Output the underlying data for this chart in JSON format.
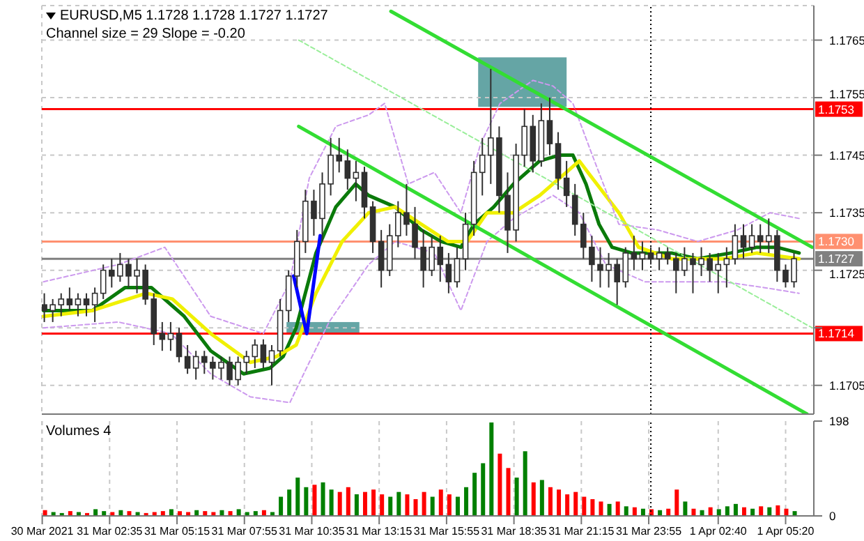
{
  "chart_data": [
    {
      "type": "candlestick",
      "title": "EURUSD,M5  1.1728 1.1728 1.1727 1.1727",
      "subtitle": "Channel size = 29 Slope = -0.20",
      "color": "#303030",
      "x": [
        "2021-03-31T00:00",
        "2021-03-31T00:20",
        "2021-03-31T00:40",
        "2021-03-31T01:00",
        "2021-03-31T01:20",
        "2021-03-31T01:40",
        "2021-03-31T02:00",
        "2021-03-31T02:20",
        "2021-03-31T02:40",
        "2021-03-31T03:00",
        "2021-03-31T03:20",
        "2021-03-31T03:40",
        "2021-03-31T04:00",
        "2021-03-31T04:20",
        "2021-03-31T04:40",
        "2021-03-31T05:00",
        "2021-03-31T05:20",
        "2021-03-31T05:40",
        "2021-03-31T06:00",
        "2021-03-31T06:20",
        "2021-03-31T06:40",
        "2021-03-31T07:00",
        "2021-03-31T07:20",
        "2021-03-31T07:40",
        "2021-03-31T08:00",
        "2021-03-31T08:20",
        "2021-03-31T08:40",
        "2021-03-31T09:00",
        "2021-03-31T09:20",
        "2021-03-31T09:40",
        "2021-03-31T10:00",
        "2021-03-31T10:20",
        "2021-03-31T10:40",
        "2021-03-31T11:00",
        "2021-03-31T11:20",
        "2021-03-31T11:40",
        "2021-03-31T12:00",
        "2021-03-31T12:20",
        "2021-03-31T12:40",
        "2021-03-31T13:00",
        "2021-03-31T13:20",
        "2021-03-31T13:40",
        "2021-03-31T14:00",
        "2021-03-31T14:20",
        "2021-03-31T14:40",
        "2021-03-31T15:00",
        "2021-03-31T15:20",
        "2021-03-31T15:40",
        "2021-03-31T16:00",
        "2021-03-31T16:20",
        "2021-03-31T16:40",
        "2021-03-31T17:00",
        "2021-03-31T17:20",
        "2021-03-31T17:40",
        "2021-03-31T18:00",
        "2021-03-31T18:20",
        "2021-03-31T18:40",
        "2021-03-31T19:00",
        "2021-03-31T19:20",
        "2021-03-31T19:40",
        "2021-03-31T20:00",
        "2021-03-31T20:20",
        "2021-03-31T20:40",
        "2021-03-31T21:00",
        "2021-03-31T21:20",
        "2021-03-31T21:40",
        "2021-03-31T22:00",
        "2021-03-31T22:20",
        "2021-03-31T22:40",
        "2021-03-31T23:00",
        "2021-03-31T23:20",
        "2021-03-31T23:40",
        "2021-04-01T00:00",
        "2021-04-01T00:20",
        "2021-04-01T00:40",
        "2021-04-01T01:00",
        "2021-04-01T01:20",
        "2021-04-01T01:40",
        "2021-04-01T02:00",
        "2021-04-01T02:20",
        "2021-04-01T02:40",
        "2021-04-01T03:00",
        "2021-04-01T03:20",
        "2021-04-01T03:40",
        "2021-04-01T04:00",
        "2021-04-01T04:20",
        "2021-04-01T04:40",
        "2021-04-01T05:00",
        "2021-04-01T05:20",
        "2021-04-01T05:40"
      ],
      "ohlc": [
        [
          1.1719,
          1.1721,
          1.1716,
          1.1718
        ],
        [
          1.1718,
          1.172,
          1.1716,
          1.1719
        ],
        [
          1.1719,
          1.1721,
          1.1717,
          1.172
        ],
        [
          1.172,
          1.1722,
          1.1718,
          1.1719
        ],
        [
          1.1719,
          1.1721,
          1.1717,
          1.172
        ],
        [
          1.172,
          1.1721,
          1.1717,
          1.1719
        ],
        [
          1.1719,
          1.1722,
          1.1716,
          1.1721
        ],
        [
          1.1721,
          1.1726,
          1.172,
          1.1725
        ],
        [
          1.1725,
          1.1727,
          1.1722,
          1.1724
        ],
        [
          1.1724,
          1.1728,
          1.1723,
          1.1726
        ],
        [
          1.1726,
          1.1727,
          1.1722,
          1.1724
        ],
        [
          1.1724,
          1.1727,
          1.1721,
          1.1725
        ],
        [
          1.1725,
          1.1726,
          1.1719,
          1.172
        ],
        [
          1.172,
          1.1721,
          1.1712,
          1.1714
        ],
        [
          1.1714,
          1.1716,
          1.1711,
          1.1713
        ],
        [
          1.1713,
          1.1716,
          1.1711,
          1.1714
        ],
        [
          1.1714,
          1.1715,
          1.1709,
          1.171
        ],
        [
          1.171,
          1.1712,
          1.1707,
          1.1708
        ],
        [
          1.1708,
          1.1711,
          1.1706,
          1.171
        ],
        [
          1.171,
          1.1711,
          1.1707,
          1.1709
        ],
        [
          1.1709,
          1.171,
          1.1706,
          1.1708
        ],
        [
          1.1708,
          1.171,
          1.1706,
          1.1709
        ],
        [
          1.1709,
          1.171,
          1.1705,
          1.1706
        ],
        [
          1.1706,
          1.171,
          1.1705,
          1.1709
        ],
        [
          1.1709,
          1.1711,
          1.1707,
          1.171
        ],
        [
          1.171,
          1.1713,
          1.1708,
          1.1712
        ],
        [
          1.1712,
          1.1713,
          1.1708,
          1.1709
        ],
        [
          1.1709,
          1.1712,
          1.1705,
          1.1711
        ],
        [
          1.1711,
          1.172,
          1.171,
          1.1718
        ],
        [
          1.1718,
          1.1725,
          1.1716,
          1.1724
        ],
        [
          1.1724,
          1.1732,
          1.1722,
          1.173
        ],
        [
          1.173,
          1.1739,
          1.1728,
          1.1737
        ],
        [
          1.1737,
          1.1739,
          1.1731,
          1.1734
        ],
        [
          1.1734,
          1.1742,
          1.173,
          1.174
        ],
        [
          1.174,
          1.1748,
          1.1738,
          1.1745
        ],
        [
          1.1745,
          1.1748,
          1.1742,
          1.1744
        ],
        [
          1.1744,
          1.1746,
          1.1739,
          1.1741
        ],
        [
          1.1741,
          1.1744,
          1.1737,
          1.1742
        ],
        [
          1.1742,
          1.1743,
          1.1734,
          1.1736
        ],
        [
          1.1736,
          1.1737,
          1.1728,
          1.173
        ],
        [
          1.173,
          1.1732,
          1.1722,
          1.1725
        ],
        [
          1.1725,
          1.1733,
          1.1724,
          1.1731
        ],
        [
          1.1731,
          1.1737,
          1.1729,
          1.1735
        ],
        [
          1.1735,
          1.174,
          1.1731,
          1.1733
        ],
        [
          1.1733,
          1.1736,
          1.1727,
          1.1729
        ],
        [
          1.1729,
          1.1732,
          1.1722,
          1.1725
        ],
        [
          1.1725,
          1.1731,
          1.1724,
          1.1729
        ],
        [
          1.1729,
          1.1731,
          1.1723,
          1.1726
        ],
        [
          1.1726,
          1.1728,
          1.1721,
          1.1723
        ],
        [
          1.1723,
          1.1729,
          1.1722,
          1.1727
        ],
        [
          1.1727,
          1.1735,
          1.1725,
          1.1733
        ],
        [
          1.1733,
          1.1744,
          1.1731,
          1.1742
        ],
        [
          1.1742,
          1.1748,
          1.1738,
          1.1745
        ],
        [
          1.1745,
          1.176,
          1.174,
          1.1748
        ],
        [
          1.1748,
          1.175,
          1.1735,
          1.1738
        ],
        [
          1.1738,
          1.1742,
          1.1728,
          1.1732
        ],
        [
          1.1732,
          1.1747,
          1.173,
          1.1745
        ],
        [
          1.1745,
          1.1753,
          1.1743,
          1.175
        ],
        [
          1.175,
          1.1752,
          1.1742,
          1.1744
        ],
        [
          1.1744,
          1.1754,
          1.1743,
          1.1751
        ],
        [
          1.1751,
          1.1755,
          1.1745,
          1.1747
        ],
        [
          1.1747,
          1.1749,
          1.1739,
          1.1741
        ],
        [
          1.1741,
          1.1744,
          1.1736,
          1.1738
        ],
        [
          1.1738,
          1.174,
          1.1731,
          1.1733
        ],
        [
          1.1733,
          1.1735,
          1.1727,
          1.1729
        ],
        [
          1.1729,
          1.1731,
          1.1723,
          1.1726
        ],
        [
          1.1726,
          1.1729,
          1.1722,
          1.1725
        ],
        [
          1.1725,
          1.1728,
          1.1722,
          1.1726
        ],
        [
          1.1726,
          1.1727,
          1.1719,
          1.1723
        ],
        [
          1.1723,
          1.1729,
          1.1722,
          1.1728
        ],
        [
          1.1728,
          1.1731,
          1.1725,
          1.1727
        ],
        [
          1.1727,
          1.173,
          1.1725,
          1.1728
        ],
        [
          1.1728,
          1.1729,
          1.1726,
          1.1727
        ],
        [
          1.1727,
          1.1729,
          1.1725,
          1.1728
        ],
        [
          1.1728,
          1.1729,
          1.1726,
          1.1727
        ],
        [
          1.1727,
          1.1728,
          1.1721,
          1.1725
        ],
        [
          1.1725,
          1.1729,
          1.1724,
          1.1727
        ],
        [
          1.1727,
          1.1728,
          1.1721,
          1.1726
        ],
        [
          1.1726,
          1.1729,
          1.1724,
          1.1727
        ],
        [
          1.1727,
          1.1728,
          1.1723,
          1.1725
        ],
        [
          1.1725,
          1.1728,
          1.1721,
          1.1726
        ],
        [
          1.1726,
          1.1729,
          1.1722,
          1.1727
        ],
        [
          1.1727,
          1.1733,
          1.1726,
          1.1731
        ],
        [
          1.1731,
          1.1733,
          1.1727,
          1.1729
        ],
        [
          1.1729,
          1.1733,
          1.1728,
          1.1731
        ],
        [
          1.1731,
          1.1733,
          1.1728,
          1.173
        ],
        [
          1.173,
          1.1734,
          1.1728,
          1.1731
        ],
        [
          1.1731,
          1.1732,
          1.1723,
          1.1725
        ],
        [
          1.1725,
          1.1726,
          1.1722,
          1.1723
        ],
        [
          1.1723,
          1.1728,
          1.1722,
          1.1727
        ]
      ],
      "series": [
        {
          "type": "line",
          "color": "#0a7a0a",
          "x": [
            "2021-03-30T23:58",
            "2021-03-31T01:54",
            "2021-03-31T03:12",
            "2021-03-31T04:14",
            "2021-03-31T05:32",
            "2021-03-31T06:35",
            "2021-03-31T07:53",
            "2021-03-31T08:56",
            "2021-03-31T09:27",
            "2021-03-31T09:58",
            "2021-03-31T10:45",
            "2021-03-31T11:32",
            "2021-03-31T12:19",
            "2021-03-31T12:50",
            "2021-03-31T13:53",
            "2021-03-31T14:55",
            "2021-03-31T15:42",
            "2021-03-31T16:29",
            "2021-03-31T17:00",
            "2021-03-31T17:47",
            "2021-03-31T18:34",
            "2021-03-31T19:36",
            "2021-03-31T20:23",
            "2021-03-31T20:55",
            "2021-03-31T21:26",
            "2021-03-31T21:57",
            "2021-03-31T22:28",
            "2021-03-31T23:15",
            "2021-04-01T00:49",
            "2021-04-01T01:51",
            "2021-04-01T03:10",
            "2021-04-01T04:12",
            "2021-04-01T04:59",
            "2021-04-01T05:52"
          ],
          "values": [
            1.1718,
            1.1718,
            1.1722,
            1.1722,
            1.1717,
            1.1711,
            1.1707,
            1.1708,
            1.171,
            1.1715,
            1.1728,
            1.1736,
            1.174,
            1.1738,
            1.1736,
            1.1732,
            1.173,
            1.1729,
            1.1733,
            1.1736,
            1.174,
            1.1744,
            1.1745,
            1.1745,
            1.174,
            1.1733,
            1.1729,
            1.1728,
            1.1728,
            1.1727,
            1.1728,
            1.1729,
            1.1729,
            1.1728
          ]
        },
        {
          "type": "line",
          "color": "#f0f000",
          "x": [
            "2021-03-30T23:58",
            "2021-03-31T01:54",
            "2021-03-31T04:02",
            "2021-03-31T05:04",
            "2021-03-31T06:35",
            "2021-03-31T08:09",
            "2021-03-31T09:11",
            "2021-03-31T09:58",
            "2021-03-31T10:45",
            "2021-03-31T11:47",
            "2021-03-31T12:50",
            "2021-03-31T13:53",
            "2021-03-31T14:55",
            "2021-03-31T15:58",
            "2021-03-31T16:44",
            "2021-03-31T17:31",
            "2021-03-31T18:34",
            "2021-03-31T19:36",
            "2021-03-31T20:39",
            "2021-03-31T21:10",
            "2021-03-31T21:41",
            "2021-03-31T22:44",
            "2021-03-31T23:31",
            "2021-04-01T00:49",
            "2021-04-01T02:53",
            "2021-04-01T04:12",
            "2021-04-01T05:52"
          ],
          "values": [
            1.1717,
            1.1718,
            1.1721,
            1.172,
            1.1714,
            1.1709,
            1.171,
            1.1712,
            1.1721,
            1.173,
            1.1735,
            1.1736,
            1.1733,
            1.173,
            1.173,
            1.1735,
            1.1735,
            1.1738,
            1.1742,
            1.1744,
            1.1741,
            1.1735,
            1.1729,
            1.1727,
            1.1727,
            1.1728,
            1.1727
          ]
        },
        {
          "type": "line",
          "color": "#cc99ee",
          "line_style": "dashed",
          "x": [
            "2021-03-30T23:58",
            "2021-03-31T02:56",
            "2021-03-31T04:46",
            "2021-03-31T06:35",
            "2021-03-31T08:40",
            "2021-03-31T09:43",
            "2021-03-31T10:29",
            "2021-03-31T11:32",
            "2021-03-31T12:50",
            "2021-03-31T13:28",
            "2021-03-31T14:24",
            "2021-03-31T15:26",
            "2021-03-31T16:29",
            "2021-03-31T17:16",
            "2021-03-31T18:02",
            "2021-03-31T19:20",
            "2021-03-31T20:08",
            "2021-03-31T20:55",
            "2021-03-31T21:41",
            "2021-03-31T22:44",
            "2021-04-01T00:17",
            "2021-04-01T01:51",
            "2021-04-01T03:25",
            "2021-04-01T04:43",
            "2021-04-01T05:52"
          ],
          "values": [
            1.1723,
            1.1726,
            1.1729,
            1.1717,
            1.1714,
            1.1723,
            1.1741,
            1.175,
            1.1752,
            1.1754,
            1.174,
            1.1742,
            1.1735,
            1.1747,
            1.1754,
            1.1758,
            1.1757,
            1.1754,
            1.1745,
            1.1733,
            1.1732,
            1.173,
            1.1732,
            1.1735,
            1.1734
          ]
        },
        {
          "type": "line",
          "color": "#cc99ee",
          "line_style": "dashed",
          "x": [
            "2021-03-30T23:58",
            "2021-03-31T02:56",
            "2021-03-31T05:01",
            "2021-03-31T06:35",
            "2021-03-31T08:09",
            "2021-03-31T09:43",
            "2021-03-31T10:29",
            "2021-03-31T11:16",
            "2021-03-31T12:50",
            "2021-03-31T13:53",
            "2021-03-31T15:26",
            "2021-03-31T16:29",
            "2021-03-31T17:31",
            "2021-03-31T18:34",
            "2021-03-31T20:08",
            "2021-03-31T21:10",
            "2021-03-31T22:13",
            "2021-03-31T23:46",
            "2021-04-01T01:20",
            "2021-04-01T02:53",
            "2021-04-01T04:28",
            "2021-04-01T05:52"
          ],
          "values": [
            1.1715,
            1.1716,
            1.1714,
            1.1707,
            1.1703,
            1.1702,
            1.1709,
            1.1716,
            1.1726,
            1.173,
            1.1728,
            1.1718,
            1.173,
            1.1734,
            1.1738,
            1.1735,
            1.1726,
            1.1723,
            1.1723,
            1.1723,
            1.1722,
            1.1721
          ]
        },
        {
          "type": "line",
          "color": "#33dd33",
          "x": [
            "2021-03-31T13:43",
            "2021-04-01T06:23"
          ],
          "values": [
            1.177,
            1.1729
          ]
        },
        {
          "type": "line",
          "color": "#33dd33",
          "x": [
            "2021-03-31T10:04",
            "2021-04-01T06:11"
          ],
          "values": [
            1.175,
            1.17
          ]
        },
        {
          "type": "line",
          "color": "#99ee99",
          "line_style": "dashed",
          "x": [
            "2021-03-31T10:04",
            "2021-04-01T06:23"
          ],
          "values": [
            1.1765,
            1.1715
          ]
        },
        {
          "type": "line",
          "color": "#0000ff",
          "x": [
            "2021-03-31T09:52",
            "2021-03-31T10:23",
            "2021-03-31T10:55"
          ],
          "values": [
            1.1724,
            1.1714,
            1.1731
          ]
        }
      ],
      "ref_lines": [
        {
          "axis": "y",
          "value": 1.1753,
          "label": "1.1753",
          "color": "#ff0000"
        },
        {
          "axis": "y",
          "value": 1.173,
          "label": "1.1730",
          "color": "#ff9070"
        },
        {
          "axis": "y",
          "value": 1.1714,
          "label": "1.1714",
          "color": "#ff0000"
        },
        {
          "axis": "y",
          "value": 1.1727,
          "label": "1.1727",
          "color": "#808080"
        },
        {
          "axis": "x",
          "value": "2021-04-01T00:00",
          "color": "#000000",
          "line_style": "dotted"
        }
      ],
      "xlim": [
        "2021-03-30T23:54",
        "2021-04-01T06:27"
      ],
      "ylim": [
        1.17,
        1.1771
      ],
      "xticks": [
        {
          "value": "2021-03-30T23:55",
          "label": null
        },
        {
          "value": "2021-03-31T02:35",
          "label": null
        },
        {
          "value": "2021-03-31T05:15",
          "label": null
        },
        {
          "value": "2021-03-31T07:55",
          "label": null
        },
        {
          "value": "2021-03-31T10:35",
          "label": null
        },
        {
          "value": "2021-03-31T13:15",
          "label": null
        },
        {
          "value": "2021-03-31T15:55",
          "label": null
        },
        {
          "value": "2021-03-31T18:35",
          "label": null
        },
        {
          "value": "2021-03-31T21:15",
          "label": null
        },
        {
          "value": "2021-03-31T23:55",
          "label": null
        },
        {
          "value": "2021-04-01T02:40",
          "label": null
        },
        {
          "value": "2021-04-01T05:20",
          "label": null
        }
      ],
      "yticks": [
        1.1705,
        {
          "value": 1.1715,
          "label": null
        },
        1.1725,
        1.1735,
        1.1745,
        1.1755,
        1.1765
      ],
      "grid": true,
      "tick_labels": "y"
    },
    {
      "type": "bar",
      "title": "Volumes 4",
      "x": [
        "2021-03-31T00:00",
        "2021-03-31T00:20",
        "2021-03-31T00:40",
        "2021-03-31T01:00",
        "2021-03-31T01:20",
        "2021-03-31T01:40",
        "2021-03-31T02:00",
        "2021-03-31T02:20",
        "2021-03-31T02:40",
        "2021-03-31T03:00",
        "2021-03-31T03:20",
        "2021-03-31T03:40",
        "2021-03-31T04:00",
        "2021-03-31T04:20",
        "2021-03-31T04:40",
        "2021-03-31T05:00",
        "2021-03-31T05:20",
        "2021-03-31T05:40",
        "2021-03-31T06:00",
        "2021-03-31T06:20",
        "2021-03-31T06:40",
        "2021-03-31T07:00",
        "2021-03-31T07:20",
        "2021-03-31T07:40",
        "2021-03-31T08:00",
        "2021-03-31T08:20",
        "2021-03-31T08:40",
        "2021-03-31T09:00",
        "2021-03-31T09:20",
        "2021-03-31T09:40",
        "2021-03-31T10:00",
        "2021-03-31T10:20",
        "2021-03-31T10:40",
        "2021-03-31T11:00",
        "2021-03-31T11:20",
        "2021-03-31T11:40",
        "2021-03-31T12:00",
        "2021-03-31T12:20",
        "2021-03-31T12:40",
        "2021-03-31T13:00",
        "2021-03-31T13:20",
        "2021-03-31T13:40",
        "2021-03-31T14:00",
        "2021-03-31T14:20",
        "2021-03-31T14:40",
        "2021-03-31T15:00",
        "2021-03-31T15:20",
        "2021-03-31T15:40",
        "2021-03-31T16:00",
        "2021-03-31T16:20",
        "2021-03-31T16:40",
        "2021-03-31T17:00",
        "2021-03-31T17:20",
        "2021-03-31T17:40",
        "2021-03-31T18:00",
        "2021-03-31T18:20",
        "2021-03-31T18:40",
        "2021-03-31T19:00",
        "2021-03-31T19:20",
        "2021-03-31T19:40",
        "2021-03-31T20:00",
        "2021-03-31T20:20",
        "2021-03-31T20:40",
        "2021-03-31T21:00",
        "2021-03-31T21:20",
        "2021-03-31T21:40",
        "2021-03-31T22:00",
        "2021-03-31T22:20",
        "2021-03-31T22:40",
        "2021-03-31T23:00",
        "2021-03-31T23:20",
        "2021-03-31T23:40",
        "2021-04-01T00:00",
        "2021-04-01T00:20",
        "2021-04-01T00:40",
        "2021-04-01T01:00",
        "2021-04-01T01:20",
        "2021-04-01T01:40",
        "2021-04-01T02:00",
        "2021-04-01T02:20",
        "2021-04-01T02:40",
        "2021-04-01T03:00",
        "2021-04-01T03:20",
        "2021-04-01T03:40",
        "2021-04-01T04:00",
        "2021-04-01T04:20",
        "2021-04-01T04:40",
        "2021-04-01T05:00",
        "2021-04-01T05:20",
        "2021-04-01T05:40"
      ],
      "values": [
        12,
        8,
        6,
        10,
        8,
        6,
        14,
        10,
        8,
        12,
        10,
        8,
        6,
        8,
        10,
        14,
        10,
        8,
        12,
        10,
        8,
        12,
        10,
        14,
        8,
        10,
        12,
        8,
        40,
        55,
        80,
        60,
        65,
        70,
        55,
        50,
        60,
        45,
        50,
        55,
        45,
        40,
        50,
        45,
        35,
        50,
        40,
        55,
        45,
        40,
        60,
        90,
        110,
        195,
        130,
        100,
        80,
        135,
        70,
        75,
        60,
        55,
        45,
        50,
        40,
        35,
        30,
        25,
        30,
        20,
        18,
        15,
        14,
        12,
        15,
        55,
        30,
        15,
        12,
        18,
        14,
        20,
        25,
        18,
        15,
        20,
        18,
        22,
        15,
        10
      ],
      "colors": [
        "#ff0000",
        "#008000",
        "#008000",
        "#ff0000",
        "#008000",
        "#ff0000",
        "#008000",
        "#008000",
        "#ff0000",
        "#008000",
        "#ff0000",
        "#008000",
        "#ff0000",
        "#ff0000",
        "#ff0000",
        "#008000",
        "#ff0000",
        "#ff0000",
        "#008000",
        "#ff0000",
        "#ff0000",
        "#008000",
        "#ff0000",
        "#008000",
        "#008000",
        "#008000",
        "#ff0000",
        "#008000",
        "#008000",
        "#008000",
        "#008000",
        "#008000",
        "#ff0000",
        "#008000",
        "#008000",
        "#ff0000",
        "#ff0000",
        "#008000",
        "#ff0000",
        "#ff0000",
        "#ff0000",
        "#008000",
        "#008000",
        "#ff0000",
        "#ff0000",
        "#ff0000",
        "#008000",
        "#ff0000",
        "#ff0000",
        "#008000",
        "#008000",
        "#008000",
        "#008000",
        "#008000",
        "#ff0000",
        "#ff0000",
        "#008000",
        "#008000",
        "#ff0000",
        "#008000",
        "#ff0000",
        "#ff0000",
        "#ff0000",
        "#ff0000",
        "#ff0000",
        "#ff0000",
        "#ff0000",
        "#008000",
        "#ff0000",
        "#008000",
        "#ff0000",
        "#008000",
        "#ff0000",
        "#008000",
        "#ff0000",
        "#ff0000",
        "#008000",
        "#ff0000",
        "#008000",
        "#ff0000",
        "#008000",
        "#008000",
        "#008000",
        "#ff0000",
        "#008000",
        "#ff0000",
        "#008000",
        "#ff0000",
        "#ff0000",
        "#008000"
      ],
      "ref_lines": [
        {
          "axis": "x",
          "value": "2021-04-01T00:00",
          "color": "#000000",
          "line_style": "dotted"
        }
      ],
      "xlim": [
        "2021-03-30T23:54",
        "2021-04-01T06:27"
      ],
      "ylim": [
        0,
        198
      ],
      "xticks": [
        {
          "value": "2021-03-30T23:55",
          "label": "30 Mar 2021"
        },
        {
          "value": "2021-03-31T02:35",
          "label": "31 Mar 02:35"
        },
        {
          "value": "2021-03-31T05:15",
          "label": "31 Mar 05:15"
        },
        {
          "value": "2021-03-31T07:55",
          "label": "31 Mar 07:55"
        },
        {
          "value": "2021-03-31T10:35",
          "label": "31 Mar 10:35"
        },
        {
          "value": "2021-03-31T13:15",
          "label": "31 Mar 13:15"
        },
        {
          "value": "2021-03-31T15:55",
          "label": "31 Mar 15:55"
        },
        {
          "value": "2021-03-31T18:35",
          "label": "31 Mar 18:35"
        },
        {
          "value": "2021-03-31T21:15",
          "label": "31 Mar 21:15"
        },
        {
          "value": "2021-03-31T23:55",
          "label": "31 Mar 23:55"
        },
        {
          "value": "2021-04-01T02:40",
          "label": "1 Apr 02:40"
        },
        {
          "value": "2021-04-01T05:20",
          "label": "1 Apr 05:20"
        }
      ],
      "yticks": [
        0,
        198
      ],
      "grid": "x"
    }
  ]
}
